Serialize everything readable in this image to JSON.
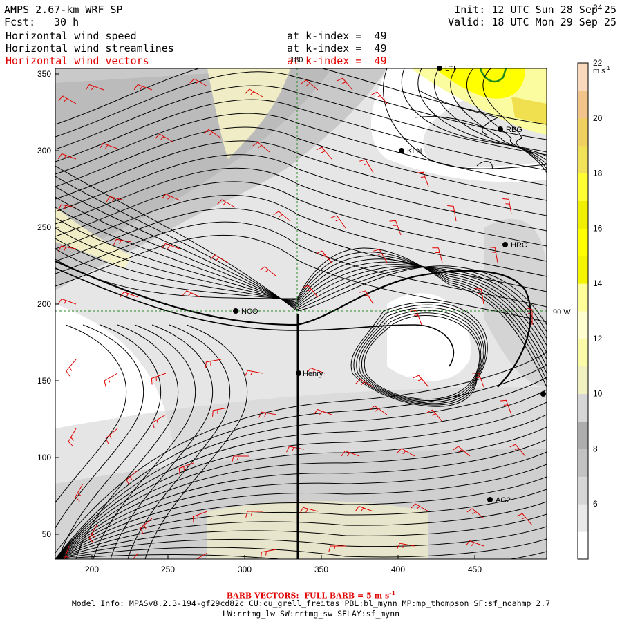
{
  "header": {
    "model": "AMPS 2.67-km WRF SP",
    "fcst_label": "Fcst:",
    "fcst_value": "30 h",
    "init": "Init: 12 UTC Sun 28 Sep 25",
    "valid": "Valid: 18 UTC Mon 29 Sep 25",
    "fields": [
      {
        "name": "Horizontal wind speed",
        "level": "at k-index =  49"
      },
      {
        "name": "Horizontal wind streamlines",
        "level": "at k-index =  49"
      },
      {
        "name": "Horizontal wind vectors",
        "level": "at k-index =  49"
      }
    ]
  },
  "map": {
    "x_ticks": [
      "200",
      "250",
      "300",
      "350",
      "400",
      "450"
    ],
    "y_ticks": [
      "50",
      "100",
      "150",
      "200",
      "250",
      "300",
      "350"
    ],
    "lon_label": "180",
    "lat_label": "90 W",
    "stations": [
      {
        "name": "LTI"
      },
      {
        "name": "RBG"
      },
      {
        "name": "KLN"
      },
      {
        "name": "HRC"
      },
      {
        "name": "NCO"
      },
      {
        "name": "Henry"
      },
      {
        "name": ""
      },
      {
        "name": "AG2"
      }
    ]
  },
  "colorbar": {
    "unit": "m s",
    "unit_sup": "-1",
    "labels": [
      "6",
      "8",
      "10",
      "12",
      "14",
      "16",
      "18",
      "20",
      "22",
      "24"
    ],
    "colors": [
      "#ffffff",
      "#e9e9e9",
      "#d6d6d6",
      "#c2c2c2",
      "#adadad",
      "#d6d6d6",
      "#f0f0c0",
      "#fbfba8",
      "#ffffd0",
      "#ffff99",
      "#f5f500",
      "#ffff00",
      "#f0f000",
      "#ffff33",
      "#f2e25a",
      "#efd060",
      "#f3c48a",
      "#f9d8bc"
    ]
  },
  "footer": {
    "barb_label": "BARB VECTORS:  FULL BARB = 5 m s",
    "barb_sup": "-1",
    "model_info": "Model Info: MPASv8.2.3-194-gf29cd82c CU:cu_grell_freitas PBL:bl_mynn MP:mp_thompson SF:sf_noahmp 2.7",
    "physics": "LW:rrtmg_lw SW:rrtmg_sw SFLAY:sf_mynn"
  }
}
